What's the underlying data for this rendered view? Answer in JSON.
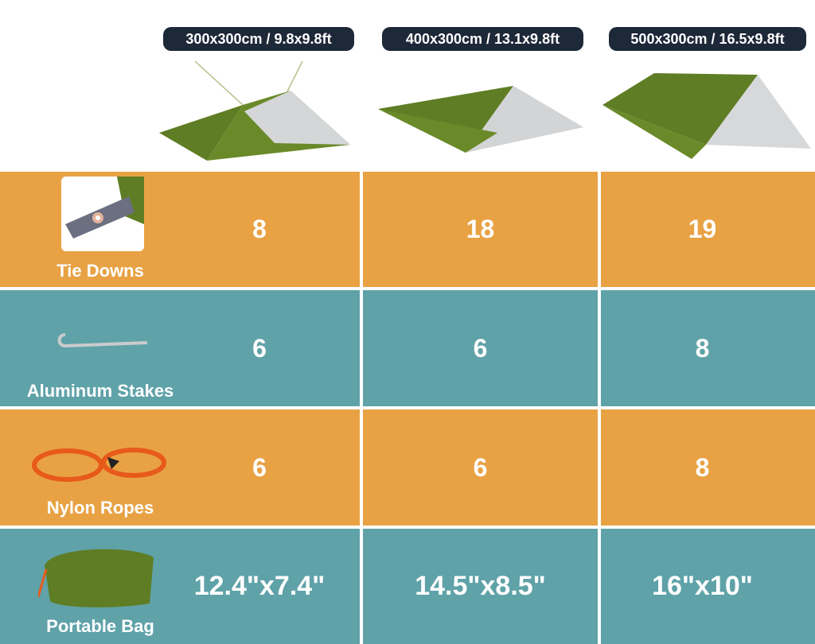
{
  "colors": {
    "orange": "#e8a244",
    "teal": "#5fa2a8",
    "pill": "#1d2838",
    "tarp_green": "#5f7d24",
    "tarp_silver": "#d4d6d8"
  },
  "sizes": [
    "300x300cm / 9.8x9.8ft",
    "400x300cm / 13.1x9.8ft",
    "500x300cm / 16.5x9.8ft"
  ],
  "rows": [
    {
      "label": "Tie Downs",
      "icon": "tie-down-icon",
      "values": [
        "8",
        "18",
        "19"
      ]
    },
    {
      "label": "Aluminum Stakes",
      "icon": "stake-icon",
      "values": [
        "6",
        "6",
        "8"
      ]
    },
    {
      "label": "Nylon Ropes",
      "icon": "rope-icon",
      "values": [
        "6",
        "6",
        "8"
      ]
    },
    {
      "label": "Portable Bag",
      "icon": "bag-icon",
      "values": [
        "12.4\"x7.4\"",
        "14.5\"x8.5\"",
        "16\"x10\""
      ]
    }
  ]
}
